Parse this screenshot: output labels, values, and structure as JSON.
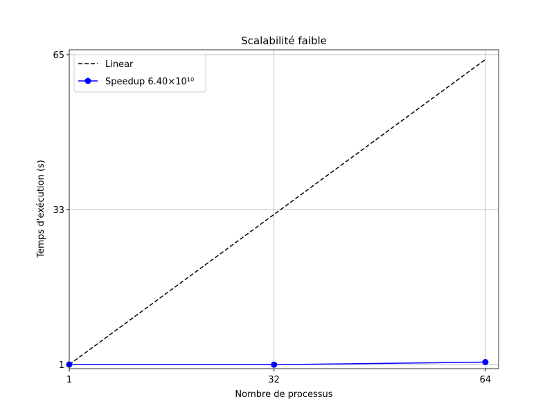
{
  "chart_data": {
    "type": "line",
    "title": "Scalabilité faible",
    "xlabel": "Nombre de processus",
    "ylabel": "Temps d'exécution (s)",
    "x": [
      1,
      32,
      64
    ],
    "series": [
      {
        "name": "Linear",
        "color": "#000000",
        "linestyle": "dashed",
        "marker": "none",
        "values": [
          1,
          32,
          64
        ]
      },
      {
        "name": "Speedup 6.40×10¹⁰",
        "color": "#0000ff",
        "linestyle": "solid",
        "marker": "circle",
        "values": [
          1.0,
          0.98,
          1.5
        ]
      }
    ],
    "xlim": [
      1,
      66
    ],
    "ylim": [
      0.15,
      66
    ],
    "xticks": [
      1,
      32,
      64
    ],
    "yticks": [
      1,
      33,
      65
    ],
    "grid": true,
    "legend": "upper left"
  }
}
